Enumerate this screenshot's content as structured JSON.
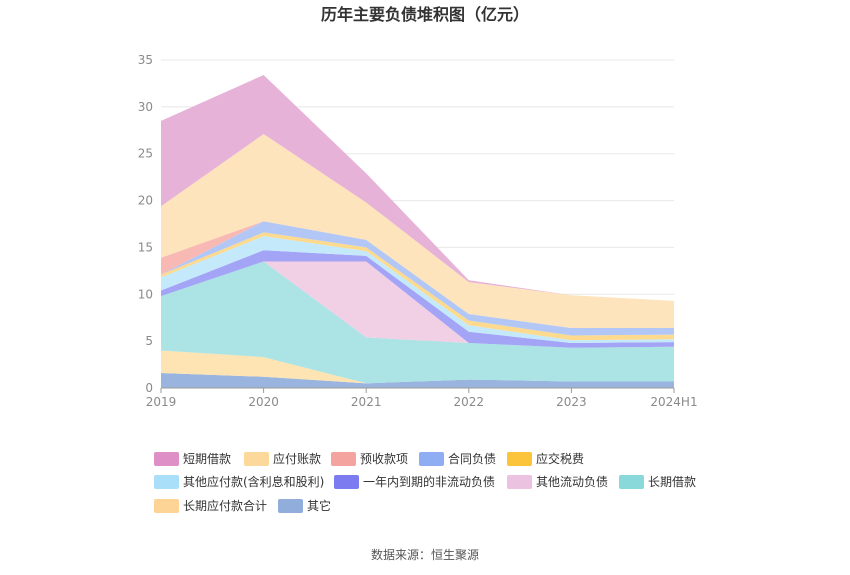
{
  "chart_data": {
    "type": "area",
    "title": "历年主要负债堆积图（亿元）",
    "xlabel": "",
    "ylabel": "",
    "categories": [
      "2019",
      "2020",
      "2021",
      "2022",
      "2023",
      "2024H1"
    ],
    "ylim": [
      0,
      35
    ],
    "yticks": [
      0,
      5,
      10,
      15,
      20,
      25,
      30,
      35
    ],
    "grid": true,
    "stacked": true,
    "legend_position": "bottom",
    "series": [
      {
        "name": "其它",
        "color": "#93b1dd",
        "values": [
          1.6,
          1.2,
          0.5,
          0.9,
          0.7,
          0.7
        ]
      },
      {
        "name": "长期应付款合计",
        "color": "#fde3ae",
        "values": [
          2.4,
          2.1,
          0.0,
          0.0,
          0.0,
          0.0
        ]
      },
      {
        "name": "长期借款",
        "color": "#a8e2e3",
        "values": [
          5.8,
          10.2,
          4.9,
          3.9,
          3.6,
          3.7
        ]
      },
      {
        "name": "其他流动负债",
        "color": "#f0cde4",
        "values": [
          0.0,
          0.0,
          8.1,
          0.0,
          0.0,
          0.0
        ]
      },
      {
        "name": "一年内到期的非流动负债",
        "color": "#9f9ff7",
        "values": [
          0.6,
          1.2,
          0.6,
          1.2,
          0.5,
          0.5
        ]
      },
      {
        "name": "其他应付款(含利息和股利)",
        "color": "#c0e8fb",
        "values": [
          1.4,
          1.5,
          0.5,
          0.7,
          0.3,
          0.3
        ]
      },
      {
        "name": "应交税费",
        "color": "#fdd888",
        "values": [
          0.3,
          0.4,
          0.4,
          0.5,
          0.5,
          0.5
        ]
      },
      {
        "name": "合同负债",
        "color": "#afc4f6",
        "values": [
          0.0,
          1.2,
          0.8,
          0.7,
          0.8,
          0.7
        ]
      },
      {
        "name": "预收款项",
        "color": "#f8b4b0",
        "values": [
          1.8,
          0.0,
          0.0,
          0.0,
          0.0,
          0.0
        ]
      },
      {
        "name": "应付账款",
        "color": "#fde3b8",
        "values": [
          5.5,
          9.3,
          4.0,
          3.4,
          3.5,
          2.9
        ]
      },
      {
        "name": "短期借款",
        "color": "#e6aed6",
        "values": [
          9.1,
          6.3,
          3.1,
          0.2,
          0.0,
          0.0
        ]
      }
    ],
    "legend": [
      {
        "name": "短期借款",
        "color": "#dd8fc6"
      },
      {
        "name": "应付账款",
        "color": "#fcd99a"
      },
      {
        "name": "预收款项",
        "color": "#f5a39e"
      },
      {
        "name": "合同负债",
        "color": "#8fadf3"
      },
      {
        "name": "应交税费",
        "color": "#fbc43a"
      },
      {
        "name": "其他应付款(含利息和股利)",
        "color": "#a9dff9"
      },
      {
        "name": "一年内到期的非流动负债",
        "color": "#7c7cf0"
      },
      {
        "name": "其他流动负债",
        "color": "#ebc2df"
      },
      {
        "name": "长期借款",
        "color": "#8ad9da"
      },
      {
        "name": "长期应付款合计",
        "color": "#fdd495"
      },
      {
        "name": "其它",
        "color": "#91addb"
      }
    ]
  },
  "footer": {
    "source": "数据来源：恒生聚源"
  }
}
